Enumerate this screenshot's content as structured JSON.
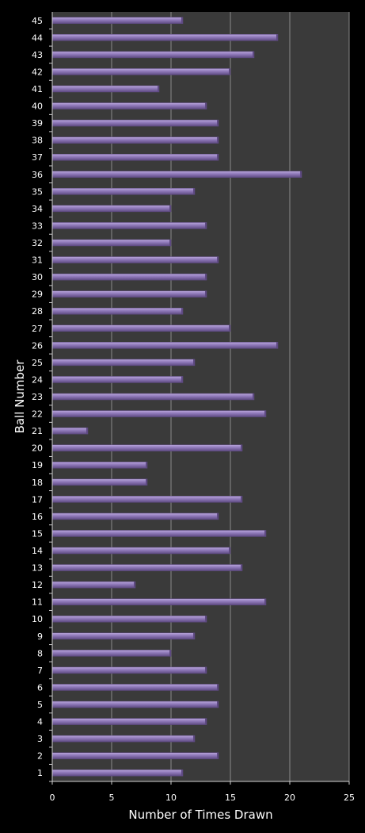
{
  "chart_data": {
    "type": "bar",
    "orientation": "horizontal",
    "title": "",
    "xlabel": "Number of Times Drawn",
    "ylabel": "Ball Number",
    "xlim": [
      0,
      25
    ],
    "xticks": [
      0,
      5,
      10,
      15,
      20,
      25
    ],
    "grid": true,
    "legend": "none",
    "categories": [
      "1",
      "2",
      "3",
      "4",
      "5",
      "6",
      "7",
      "8",
      "9",
      "10",
      "11",
      "12",
      "13",
      "14",
      "15",
      "16",
      "17",
      "18",
      "19",
      "20",
      "21",
      "22",
      "23",
      "24",
      "25",
      "26",
      "27",
      "28",
      "29",
      "30",
      "31",
      "32",
      "33",
      "34",
      "35",
      "36",
      "37",
      "38",
      "39",
      "40",
      "41",
      "42",
      "43",
      "44",
      "45"
    ],
    "values": [
      11,
      14,
      12,
      13,
      14,
      14,
      13,
      10,
      12,
      13,
      18,
      7,
      16,
      15,
      18,
      14,
      16,
      8,
      8,
      16,
      3,
      18,
      17,
      11,
      12,
      19,
      15,
      11,
      13,
      13,
      14,
      10,
      13,
      10,
      12,
      21,
      14,
      14,
      14,
      13,
      9,
      15,
      17,
      19,
      11
    ]
  },
  "colors": {
    "background": "#000000",
    "plot_area": "#3a3a3a",
    "gridline": "#8a8a8a",
    "bar_fill": "#8e78b8",
    "bar_top": "#b9a6dc",
    "bar_bottom": "#5e4a82",
    "text": "#ffffff"
  }
}
